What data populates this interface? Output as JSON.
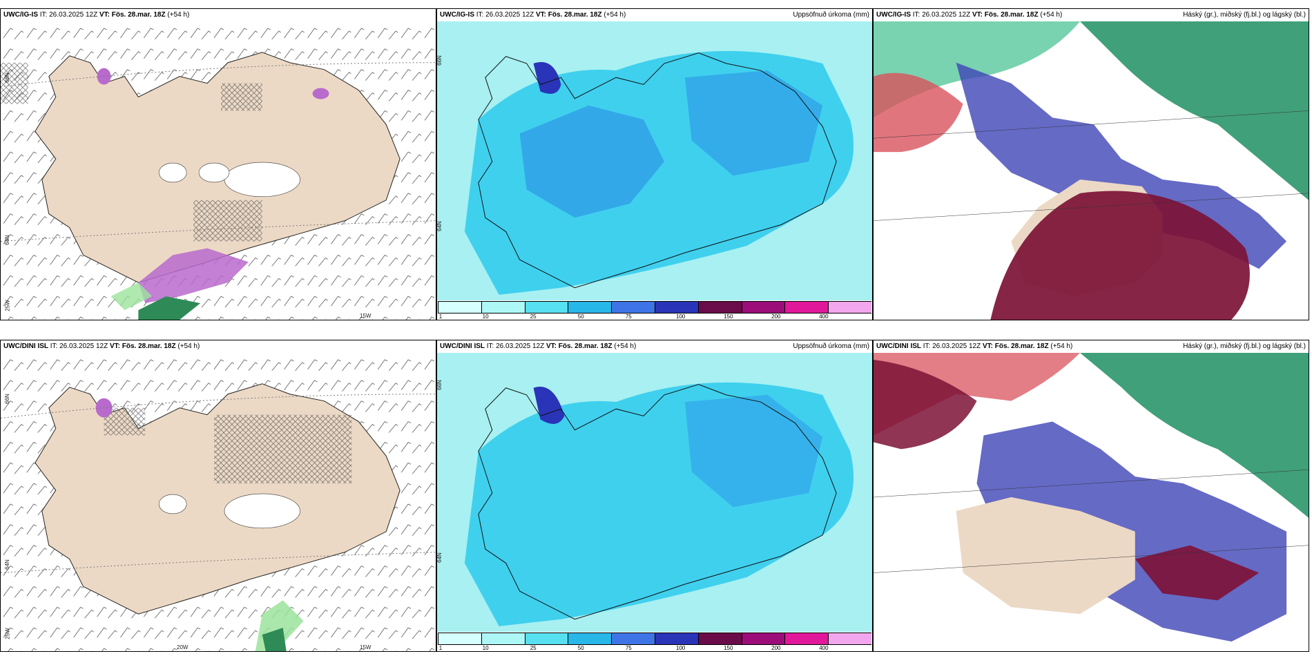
{
  "panels": {
    "top_left": {
      "model": "UWC/IG-IS",
      "it": "IT: 26.03.2025 12Z",
      "vt_label": "VT:",
      "vt": "Fös. 28.mar. 18Z",
      "lead": "(+54 h)",
      "right": "",
      "lat_labels": [
        "66N",
        "64N",
        "25W",
        "15W"
      ]
    },
    "top_mid": {
      "model": "UWC/IG-IS",
      "it": "IT: 26.03.2025 12Z",
      "vt_label": "VT:",
      "vt": "Fös. 28.mar. 18Z",
      "lead": "(+54 h)",
      "right": "Uppsöfnuð úrkoma (mm)",
      "lat_labels": [
        "66N",
        "64N"
      ]
    },
    "top_right": {
      "model": "UWC/IG-IS",
      "it": "IT: 26.03.2025 12Z",
      "vt_label": "VT:",
      "vt": "Fös. 28.mar. 18Z",
      "lead": "(+54 h)",
      "right": "Háský (gr.), miðský (fj.bl.) og lágský (bl.)"
    },
    "bottom_left": {
      "model": "UWC/DINI ISL",
      "it": "IT: 26.03.2025 12Z",
      "vt_label": "VT:",
      "vt": "Fös. 28.mar. 18Z",
      "lead": "(+54 h)",
      "right": "",
      "lat_labels": [
        "66N",
        "64N",
        "25W",
        "20W",
        "15W"
      ]
    },
    "bottom_mid": {
      "model": "UWC/DINI ISL",
      "it": "IT: 26.03.2025 12Z",
      "vt_label": "VT:",
      "vt": "Fös. 28.mar. 18Z",
      "lead": "(+54 h)",
      "right": "Uppsöfnuð úrkoma (mm)",
      "lat_labels": [
        "66N",
        "64N"
      ]
    },
    "bottom_right": {
      "model": "UWC/DINI ISL",
      "it": "IT: 26.03.2025 12Z",
      "vt_label": "VT:",
      "vt": "Fös. 28.mar. 18Z",
      "lead": "(+54 h)",
      "right": "Háský (gr.), miðský (fj.bl.) og lágský (bl.)"
    }
  },
  "colorbar": {
    "ticks": [
      "1",
      "10",
      "25",
      "50",
      "75",
      "100",
      "150",
      "200",
      "400"
    ],
    "colors": [
      "#d6ffff",
      "#aef7f7",
      "#57e1f0",
      "#27b7e8",
      "#3f74e6",
      "#2a34b8",
      "#6a0b4a",
      "#9c0d7a",
      "#e2189a",
      "#f2a6ee"
    ]
  },
  "colors": {
    "land": "#ecd9c5",
    "sea": "#ffffff",
    "precip_bg": "#a8f0f2",
    "precip_mid": "#3fd0ee",
    "precip_high": "#2a8ee6",
    "cloud_high": "#1f8f63",
    "cloud_mid": "#d9535d",
    "cloud_low": "#3e45b6",
    "cloud_dark": "#7c1236",
    "snow_pink": "#b86acd"
  }
}
